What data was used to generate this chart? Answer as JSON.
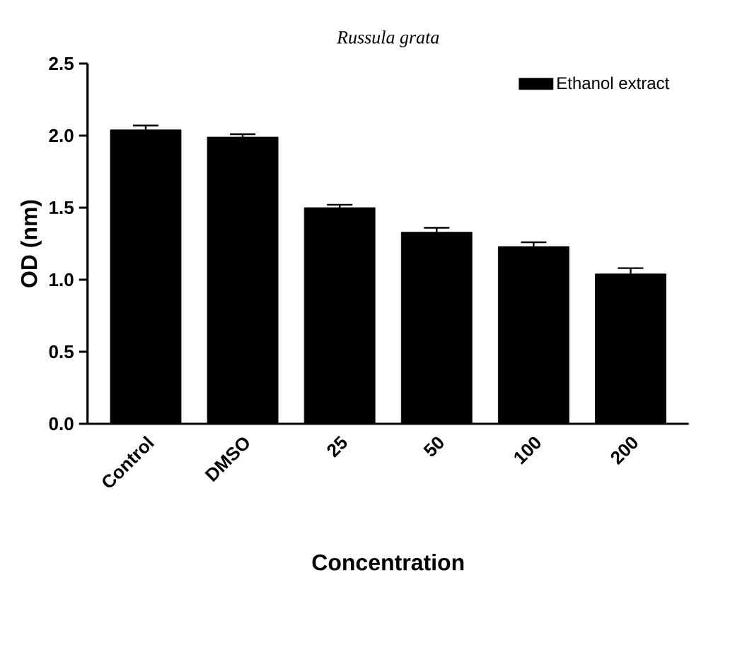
{
  "chart_data": {
    "type": "bar",
    "title": "Russula grata",
    "xlabel": "Concentration",
    "ylabel": "OD (nm)",
    "categories": [
      "Control",
      "DMSO",
      "25",
      "50",
      "100",
      "200"
    ],
    "series": [
      {
        "name": "Ethanol extract",
        "color": "#000000",
        "values": [
          2.04,
          1.99,
          1.5,
          1.33,
          1.23,
          1.04
        ],
        "errors": [
          0.03,
          0.02,
          0.02,
          0.03,
          0.03,
          0.04
        ]
      }
    ],
    "ylim": [
      0,
      2.5
    ],
    "yticks": [
      {
        "value": 0,
        "label": "0.0"
      },
      0.5,
      {
        "value": 1,
        "label": "1.0"
      },
      1.5,
      {
        "value": 2,
        "label": "2.0"
      },
      2.5
    ],
    "legend": "top right",
    "grid": false
  }
}
